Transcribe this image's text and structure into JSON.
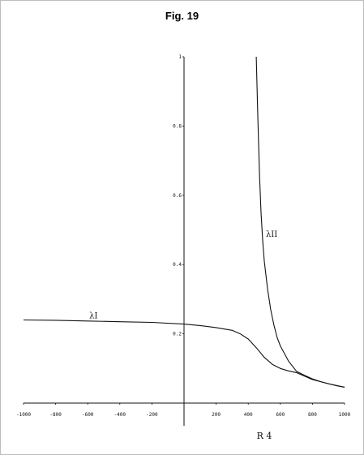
{
  "figure": {
    "title": "Fig. 19"
  },
  "chart_data": {
    "type": "line",
    "title": "Fig. 19",
    "xlabel": "R 4",
    "ylabel": "",
    "xlim": [
      -1000,
      1000
    ],
    "ylim": [
      0,
      1
    ],
    "grid": false,
    "legend": "none",
    "x_ticks": [
      -1000,
      -800,
      -600,
      -400,
      -200,
      200,
      400,
      600,
      800,
      1000
    ],
    "x_tick_labels": [
      "-1000",
      "-800",
      "-600",
      "-400",
      "-200",
      "200",
      "400",
      "600",
      "800",
      "1000"
    ],
    "y_ticks": [
      0.2,
      0.4,
      0.6,
      0.8,
      1
    ],
    "y_tick_labels": [
      "0.2",
      "0.4",
      "0.6",
      "0.8",
      "1"
    ],
    "series": [
      {
        "name": "λII",
        "label_at": [
          510,
          0.48
        ],
        "x": [
          450,
          460,
          470,
          480,
          490,
          500,
          520,
          540,
          560,
          580,
          600,
          650,
          700,
          750,
          800,
          850,
          900,
          950,
          1000
        ],
        "y": [
          1.0,
          0.82,
          0.66,
          0.55,
          0.47,
          0.41,
          0.33,
          0.27,
          0.225,
          0.19,
          0.165,
          0.122,
          0.092,
          0.08,
          0.07,
          0.062,
          0.056,
          0.05,
          0.046
        ]
      },
      {
        "name": "λI",
        "label_at": [
          -590,
          0.245
        ],
        "x": [
          -1000,
          -800,
          -600,
          -400,
          -200,
          0,
          100,
          200,
          300,
          350,
          400,
          450,
          500,
          550,
          600,
          650,
          700,
          800,
          900,
          1000
        ],
        "y": [
          0.24,
          0.239,
          0.237,
          0.235,
          0.233,
          0.228,
          0.224,
          0.218,
          0.21,
          0.2,
          0.185,
          0.16,
          0.132,
          0.112,
          0.1,
          0.093,
          0.088,
          0.068,
          0.056,
          0.046
        ]
      }
    ]
  }
}
